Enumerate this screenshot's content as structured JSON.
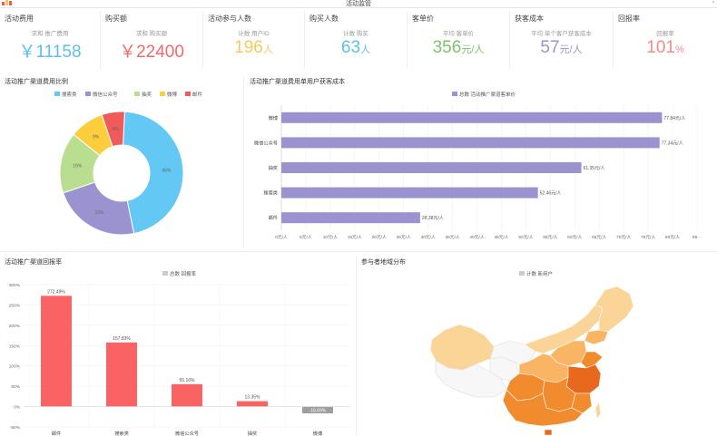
{
  "header": {
    "title": "活动监管"
  },
  "kpis": [
    {
      "title": "活动费用",
      "subtitle": "求和 推广费用",
      "prefix": "￥",
      "value": "11158",
      "unit": "",
      "color": "#5bc0e8"
    },
    {
      "title": "购买额",
      "subtitle": "求和 购买额",
      "prefix": "￥",
      "value": "22400",
      "unit": "",
      "color": "#f06b6b"
    },
    {
      "title": "活动参与人数",
      "subtitle": "计数 用户ID",
      "prefix": "",
      "value": "196",
      "unit": "人",
      "color": "#f6c85f"
    },
    {
      "title": "购买人数",
      "subtitle": "计数 购买",
      "prefix": "",
      "value": "63",
      "unit": "人",
      "color": "#5bc0e8"
    },
    {
      "title": "客单价",
      "subtitle": "平均 客单价",
      "prefix": "",
      "value": "356",
      "unit": "元/人",
      "color": "#7dc36b"
    },
    {
      "title": "获客成本",
      "subtitle": "平均 单个客户获客成本",
      "prefix": "",
      "value": "57",
      "unit": "元/人",
      "color": "#9a93cf"
    },
    {
      "title": "回报率",
      "subtitle": "回报率",
      "prefix": "",
      "value": "101",
      "unit": "%",
      "color": "#f58a8a"
    }
  ],
  "panels": {
    "pie_title": "活动推广渠道费用比例",
    "bar_title": "活动推广渠道费用单用户获客成本",
    "col_title": "活动推广渠道回报率",
    "map_title": "参与者地域分布"
  },
  "chart_data": [
    {
      "type": "pie",
      "title": "活动推广渠道费用比例",
      "legend": [
        "搜索类",
        "微信公众号",
        "抽奖",
        "微博",
        "邮件"
      ],
      "values": [
        46,
        23,
        16,
        9,
        6
      ],
      "labels": [
        "46%",
        "23%",
        "16%",
        "9%",
        "6%"
      ],
      "colors": [
        "#64c8f5",
        "#9a93cf",
        "#b9de8f",
        "#fcce3c",
        "#f05a5a"
      ]
    },
    {
      "type": "bar",
      "title": "活动推广渠道费用单用户获客成本",
      "legend": [
        "总数 活动推广渠道客单价"
      ],
      "categories": [
        "微博",
        "微信公众号",
        "抽奖",
        "搜索类",
        "邮件"
      ],
      "values": [
        77.84,
        77.34,
        61.35,
        52.46,
        28.38
      ],
      "value_labels": [
        "77.84元/人",
        "77.34元/人",
        "61.35元/人",
        "52.46元/人",
        "28.38元/人"
      ],
      "x_ticks": [
        "0元/人",
        "5元/人",
        "10元/人",
        "15元/人",
        "20元/人",
        "25元/人",
        "30元/人",
        "35元/人",
        "40元/人",
        "45元/人",
        "50元/人",
        "55元/人",
        "60元/人",
        "65元/人",
        "70元/人",
        "75元/人",
        "80元/人",
        "85···"
      ],
      "xlim": [
        0,
        85
      ],
      "color": "#9a93cf"
    },
    {
      "type": "bar",
      "title": "活动推广渠道回报率",
      "legend": [
        "总数 回报率"
      ],
      "categories": [
        "邮件",
        "搜索类",
        "微信公众号",
        "抽奖",
        "微博"
      ],
      "values": [
        272.49,
        157.83,
        55.16,
        13.35,
        -16.69
      ],
      "value_labels": [
        "272.49%",
        "157.83%",
        "55.16%",
        "13.35%",
        "-16.69%"
      ],
      "y_ticks": [
        "300%",
        "250%",
        "200%",
        "150%",
        "100%",
        "50%",
        "0%",
        "-50%"
      ],
      "ylim": [
        -50,
        300
      ],
      "colors": {
        "positive": "#f96363",
        "negative": "#9e9e9e"
      }
    },
    {
      "type": "other",
      "title": "参与者地域分布",
      "legend": [
        "计数 新用户"
      ],
      "colors": [
        "#f7f7f7",
        "#fbd497",
        "#f9b464",
        "#f08c2d",
        "#e8691e"
      ]
    }
  ]
}
